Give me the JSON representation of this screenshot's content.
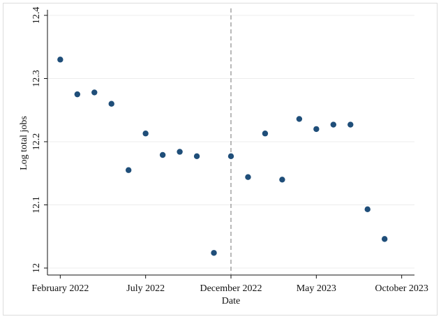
{
  "chart_data": {
    "type": "scatter",
    "xlabel": "Date",
    "ylabel": "Log total jobs",
    "ylim": [
      12.0,
      12.4
    ],
    "yticks": [
      "12",
      "12.1",
      "12.2",
      "12.3",
      "12.4"
    ],
    "xticks": [
      {
        "label": "February 2022",
        "x": "2022-02"
      },
      {
        "label": "July 2022",
        "x": "2022-07"
      },
      {
        "label": "December 2022",
        "x": "2022-12"
      },
      {
        "label": "May 2023",
        "x": "2023-05"
      },
      {
        "label": "October 2023",
        "x": "2023-10"
      }
    ],
    "xlim": [
      "2022-02",
      "2023-10"
    ],
    "grid": true,
    "vline": {
      "x": "2022-12",
      "style": "dashed"
    },
    "marker_color": "#1f4e79",
    "points": [
      {
        "x": "2022-02",
        "y": 12.33
      },
      {
        "x": "2022-03",
        "y": 12.275
      },
      {
        "x": "2022-04",
        "y": 12.278
      },
      {
        "x": "2022-05",
        "y": 12.26
      },
      {
        "x": "2022-06",
        "y": 12.155
      },
      {
        "x": "2022-07",
        "y": 12.213
      },
      {
        "x": "2022-08",
        "y": 12.179
      },
      {
        "x": "2022-09",
        "y": 12.184
      },
      {
        "x": "2022-10",
        "y": 12.177
      },
      {
        "x": "2022-11",
        "y": 12.024
      },
      {
        "x": "2022-12",
        "y": 12.177
      },
      {
        "x": "2023-01",
        "y": 12.144
      },
      {
        "x": "2023-02",
        "y": 12.213
      },
      {
        "x": "2023-03",
        "y": 12.14
      },
      {
        "x": "2023-04",
        "y": 12.236
      },
      {
        "x": "2023-05",
        "y": 12.22
      },
      {
        "x": "2023-06",
        "y": 12.227
      },
      {
        "x": "2023-07",
        "y": 12.227
      },
      {
        "x": "2023-08",
        "y": 12.093
      },
      {
        "x": "2023-09",
        "y": 12.046
      }
    ]
  }
}
